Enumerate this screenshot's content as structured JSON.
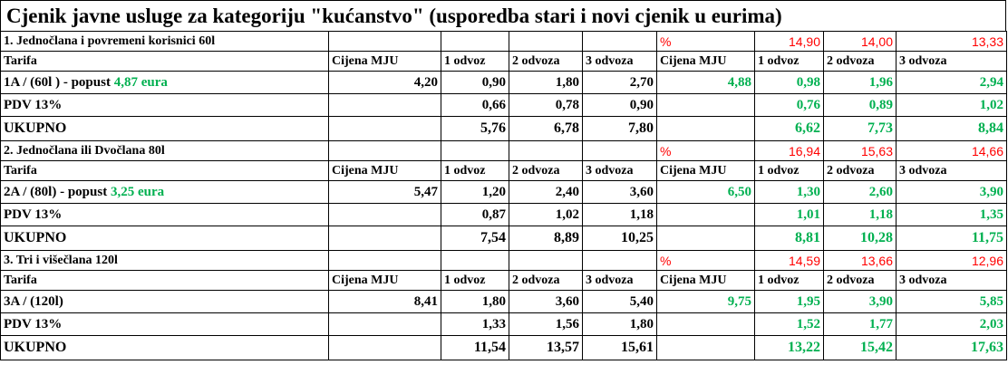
{
  "title": "Cjenik javne usluge za kategoriju \"kućanstvo\" (usporedba stari i novi cjenik u eurima)",
  "header": {
    "tarifa": "Tarifa",
    "cijena_mju": "Cijena MJU",
    "odvoz1": "1 odvoz",
    "odvoz2": "2 odvoza",
    "odvoz3": "3 odvoza"
  },
  "colors": {
    "green": "#00b050",
    "red": "#ff0000"
  },
  "sections": [
    {
      "name": "1. Jednočlana i povremeni korisnici 60l",
      "pct_label": "%",
      "pct": [
        "14,90",
        "14,00",
        "13,33"
      ],
      "tariff_prefix": "1A / (60l ) - popust ",
      "tariff_discount": "4,87 eura",
      "old_price": "4,20",
      "old_base": [
        "0,90",
        "1,80",
        "2,70"
      ],
      "new_price": "4,88",
      "new_base": [
        "0,98",
        "1,96",
        "2,94"
      ],
      "vat_label": "PDV 13%",
      "old_vat": [
        "0,66",
        "0,78",
        "0,90"
      ],
      "new_vat": [
        "0,76",
        "0,89",
        "1,02"
      ],
      "total_label": "UKUPNO",
      "old_total": [
        "5,76",
        "6,78",
        "7,80"
      ],
      "new_total": [
        "6,62",
        "7,73",
        "8,84"
      ]
    },
    {
      "name": "2. Jednočlana ili Dvočlana 80l",
      "pct_label": "%",
      "pct": [
        "16,94",
        "15,63",
        "14,66"
      ],
      "tariff_prefix": "2A / (80l) - popust ",
      "tariff_discount": "3,25 eura",
      "old_price": "5,47",
      "old_base": [
        "1,20",
        "2,40",
        "3,60"
      ],
      "new_price": "6,50",
      "new_base": [
        "1,30",
        "2,60",
        "3,90"
      ],
      "vat_label": "PDV 13%",
      "old_vat": [
        "0,87",
        "1,02",
        "1,18"
      ],
      "new_vat": [
        "1,01",
        "1,18",
        "1,35"
      ],
      "total_label": "UKUPNO",
      "old_total": [
        "7,54",
        "8,89",
        "10,25"
      ],
      "new_total": [
        "8,81",
        "10,28",
        "11,75"
      ]
    },
    {
      "name": "3. Tri i višečlana  120l",
      "pct_label": "%",
      "pct": [
        "14,59",
        "13,66",
        "12,96"
      ],
      "tariff_prefix": "3A / (120l)",
      "tariff_discount": "",
      "old_price": "8,41",
      "old_base": [
        "1,80",
        "3,60",
        "5,40"
      ],
      "new_price": "9,75",
      "new_base": [
        "1,95",
        "3,90",
        "5,85"
      ],
      "vat_label": "PDV 13%",
      "old_vat": [
        "1,33",
        "1,56",
        "1,80"
      ],
      "new_vat": [
        "1,52",
        "1,77",
        "2,03"
      ],
      "total_label": "UKUPNO",
      "old_total": [
        "11,54",
        "13,57",
        "15,61"
      ],
      "new_total": [
        "13,22",
        "15,42",
        "17,63"
      ]
    }
  ]
}
